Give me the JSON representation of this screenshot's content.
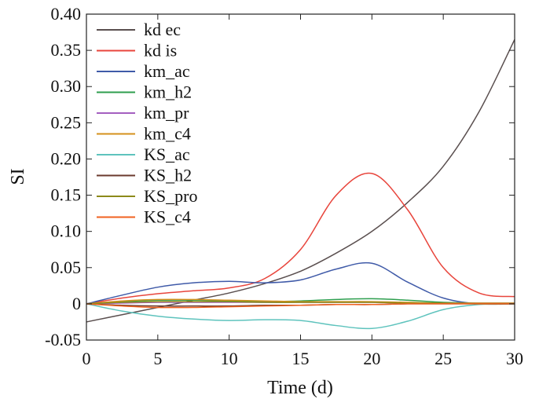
{
  "chart_data": {
    "type": "line",
    "title": "",
    "xlabel": "Time (d)",
    "ylabel": "SI",
    "xlim": [
      0,
      30
    ],
    "ylim": [
      -0.05,
      0.4
    ],
    "x_ticks": [
      "0",
      "5",
      "10",
      "15",
      "20",
      "25",
      "30"
    ],
    "y_ticks": [
      "-0.05",
      "0",
      "0.05",
      "0.10",
      "0.15",
      "0.20",
      "0.25",
      "0.30",
      "0.35",
      "0.40"
    ],
    "grid": false,
    "legend_position": "top-left",
    "x": [
      0,
      2.5,
      5,
      7.5,
      10,
      12.5,
      15,
      17.5,
      20,
      22.5,
      25,
      27.5,
      30
    ],
    "series": [
      {
        "name": "kd ec",
        "color": "#5a4f4f",
        "values": [
          -0.025,
          -0.015,
          -0.005,
          0.005,
          0.015,
          0.028,
          0.045,
          0.07,
          0.1,
          0.14,
          0.19,
          0.265,
          0.365
        ]
      },
      {
        "name": "kd is",
        "color": "#e8453c",
        "values": [
          0,
          0.008,
          0.014,
          0.018,
          0.022,
          0.035,
          0.075,
          0.15,
          0.18,
          0.13,
          0.05,
          0.015,
          0.01
        ]
      },
      {
        "name": "km_ac",
        "color": "#3f5aa8",
        "values": [
          0,
          0.012,
          0.023,
          0.029,
          0.031,
          0.029,
          0.033,
          0.048,
          0.056,
          0.03,
          0.008,
          0,
          0
        ]
      },
      {
        "name": "km_h2",
        "color": "#2e9e4e",
        "values": [
          0,
          0.003,
          0.005,
          0.005,
          0.004,
          0.003,
          0.004,
          0.006,
          0.007,
          0.005,
          0.002,
          0.001,
          0.001
        ]
      },
      {
        "name": "km_pr",
        "color": "#a45fc0",
        "values": [
          0,
          0.001,
          0.002,
          0.002,
          0.002,
          0.002,
          0.002,
          0.002,
          0.002,
          0.001,
          0.001,
          0.001,
          0.001
        ]
      },
      {
        "name": "km_c4",
        "color": "#d4901c",
        "values": [
          0,
          0.004,
          0.006,
          0.006,
          0.005,
          0.004,
          0.003,
          0.003,
          0.003,
          0.002,
          0.001,
          0.001,
          0.001
        ]
      },
      {
        "name": "KS_ac",
        "color": "#5ec3bd",
        "values": [
          0,
          -0.01,
          -0.017,
          -0.021,
          -0.023,
          -0.022,
          -0.023,
          -0.03,
          -0.034,
          -0.024,
          -0.008,
          -0.001,
          0
        ]
      },
      {
        "name": "KS_h2",
        "color": "#6b3a2e",
        "values": [
          0,
          -0.002,
          -0.003,
          -0.003,
          -0.003,
          -0.002,
          -0.002,
          -0.001,
          -0.001,
          0,
          0,
          0,
          0
        ]
      },
      {
        "name": "KS_pro",
        "color": "#8c8a1a",
        "values": [
          0,
          0.002,
          0.003,
          0.003,
          0.003,
          0.002,
          0.002,
          0.002,
          0.002,
          0.001,
          0.001,
          0,
          0
        ]
      },
      {
        "name": "KS_c4",
        "color": "#f0611f",
        "values": [
          0,
          -0.003,
          -0.005,
          -0.005,
          -0.004,
          -0.003,
          -0.002,
          -0.001,
          -0.001,
          0,
          0,
          0,
          0
        ]
      }
    ]
  }
}
